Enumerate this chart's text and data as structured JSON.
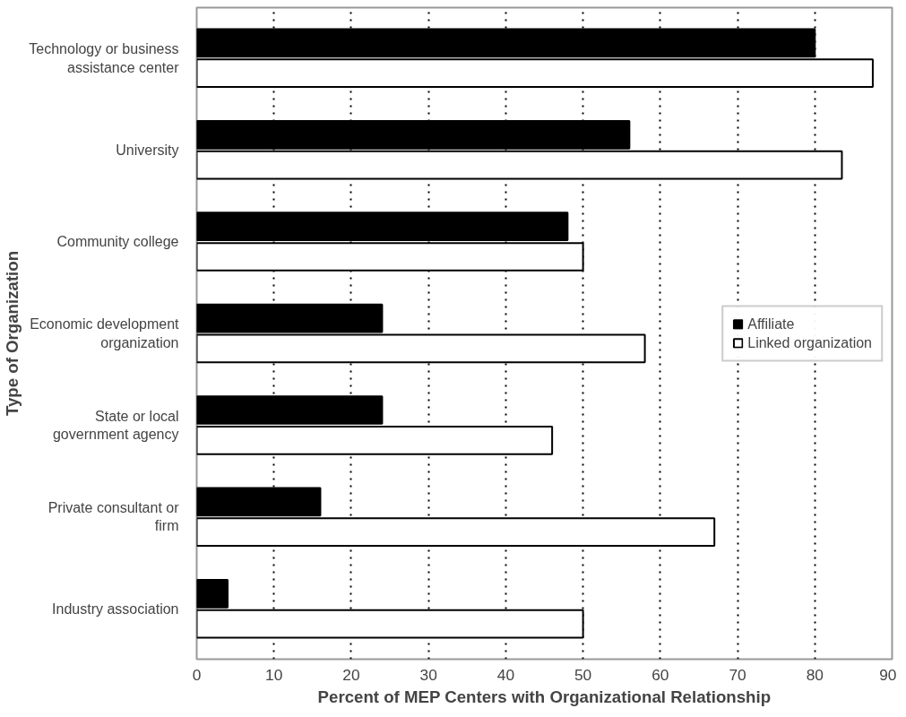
{
  "chart_data": {
    "type": "bar",
    "orientation": "horizontal",
    "xlabel": "Percent of MEP Centers with Organizational Relationship",
    "ylabel": "Type of Organization",
    "categories": [
      "Technology or business assistance center",
      "University",
      "Community college",
      "Economic development organization",
      "State or local government agency",
      "Private consultant or firm",
      "Industry association"
    ],
    "series": [
      {
        "name": "Affiliate",
        "color": "#000000",
        "values": [
          80,
          56,
          48,
          24,
          24,
          16,
          4
        ]
      },
      {
        "name": "Linked organization",
        "color": "#ffffff",
        "values": [
          87.5,
          83.5,
          50,
          58,
          46,
          67,
          50
        ]
      }
    ],
    "xlim": [
      0,
      90
    ],
    "xticks": [
      0,
      10,
      20,
      30,
      40,
      50,
      60,
      70,
      80,
      90
    ],
    "grid": "x",
    "legend": "right"
  }
}
